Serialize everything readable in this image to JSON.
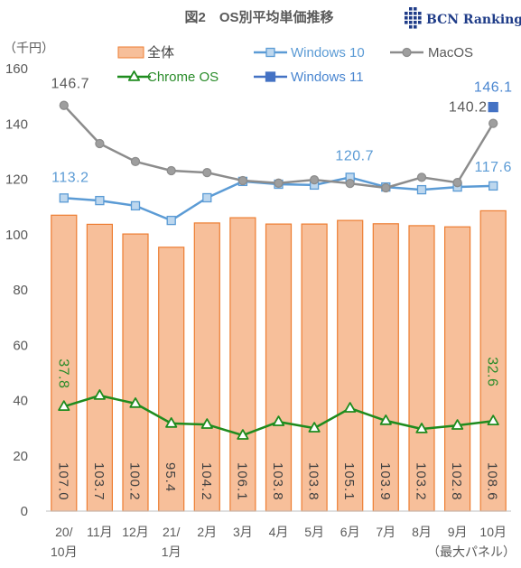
{
  "logo": {
    "text": "BCN Ranking",
    "color": "#1f3c88"
  },
  "chart_data": {
    "type": "bar",
    "title": "図2　OS別平均単価推移",
    "ylabel": "（千円）",
    "xlabel": "",
    "ylim": [
      0,
      160
    ],
    "yticks": [
      0,
      20,
      40,
      60,
      80,
      100,
      120,
      140,
      160
    ],
    "categories": [
      [
        "20/",
        "10月"
      ],
      [
        "11月"
      ],
      [
        "12月"
      ],
      [
        "21/",
        "1月"
      ],
      [
        "2月"
      ],
      [
        "3月"
      ],
      [
        "4月"
      ],
      [
        "5月"
      ],
      [
        "6月"
      ],
      [
        "7月"
      ],
      [
        "8月"
      ],
      [
        "9月"
      ],
      [
        "10月"
      ]
    ],
    "note": "（最大パネル）",
    "grid": false,
    "legend": "top",
    "series": [
      {
        "name": "全体",
        "kind": "bar",
        "color": "#f7bf9a",
        "edge_color": "#ed7d31",
        "label_color": "#404040",
        "values": [
          107.0,
          103.7,
          100.2,
          95.4,
          104.2,
          106.1,
          103.8,
          103.8,
          105.1,
          103.9,
          103.2,
          102.8,
          108.6
        ],
        "labels": [
          "107.0",
          "103.7",
          "100.2",
          "95.4",
          "104.2",
          "106.1",
          "103.8",
          "103.8",
          "105.1",
          "103.9",
          "103.2",
          "102.8",
          "108.6"
        ]
      },
      {
        "name": "Windows 10",
        "kind": "line",
        "marker": "square",
        "color": "#5b9bd5",
        "marker_fill": "#bdd7ee",
        "label_color": "#5b9bd5",
        "values": [
          113.2,
          112.3,
          110.4,
          105.1,
          113.3,
          119.2,
          118.2,
          117.9,
          120.7,
          117.2,
          116.2,
          117.2,
          117.6
        ],
        "labels": [
          {
            "index": 0,
            "text": "113.2"
          },
          {
            "index": 8,
            "text": "120.7"
          },
          {
            "index": 12,
            "text": "117.6"
          }
        ]
      },
      {
        "name": "MacOS",
        "kind": "line",
        "marker": "circle",
        "color": "#8c8c8c",
        "marker_fill": "#9e9e9e",
        "label_color": "#595959",
        "values": [
          146.7,
          132.9,
          126.4,
          123.1,
          122.4,
          119.5,
          118.6,
          119.8,
          118.5,
          116.9,
          120.7,
          118.8,
          140.2
        ],
        "labels": [
          {
            "index": 0,
            "text": "146.7"
          },
          {
            "index": 12,
            "text": "140.2"
          }
        ]
      },
      {
        "name": "Chrome OS",
        "kind": "line",
        "marker": "triangle",
        "color": "#1e8c1e",
        "marker_fill": "#ffffff",
        "label_color": "#2a8c2a",
        "values": [
          37.8,
          41.8,
          38.9,
          31.7,
          31.3,
          27.4,
          32.3,
          30.0,
          37.2,
          32.7,
          29.7,
          31.0,
          32.6
        ],
        "labels": [
          {
            "index": 0,
            "text": "37.8"
          },
          {
            "index": 12,
            "text": "32.6"
          }
        ]
      },
      {
        "name": "Windows 11",
        "kind": "marker",
        "marker": "square",
        "color": "#4472c4",
        "marker_fill": "#4472c4",
        "label_color": "#4a86d0",
        "values": [
          null,
          null,
          null,
          null,
          null,
          null,
          null,
          null,
          null,
          null,
          null,
          null,
          146.1
        ],
        "labels": [
          {
            "index": 12,
            "text": "146.1"
          }
        ]
      }
    ]
  }
}
